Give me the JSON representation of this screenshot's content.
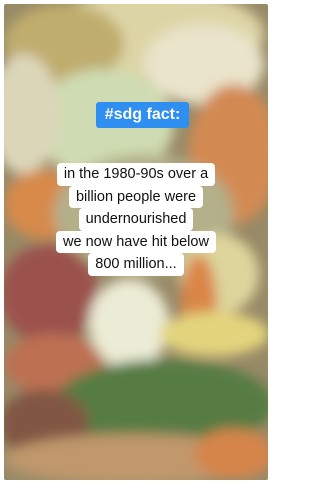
{
  "label": "#sdg fact:",
  "caption": {
    "lines": [
      "in the 1980-90s over a",
      "billion people were",
      "undernourished",
      "we now have hit below",
      "800 million..."
    ]
  }
}
